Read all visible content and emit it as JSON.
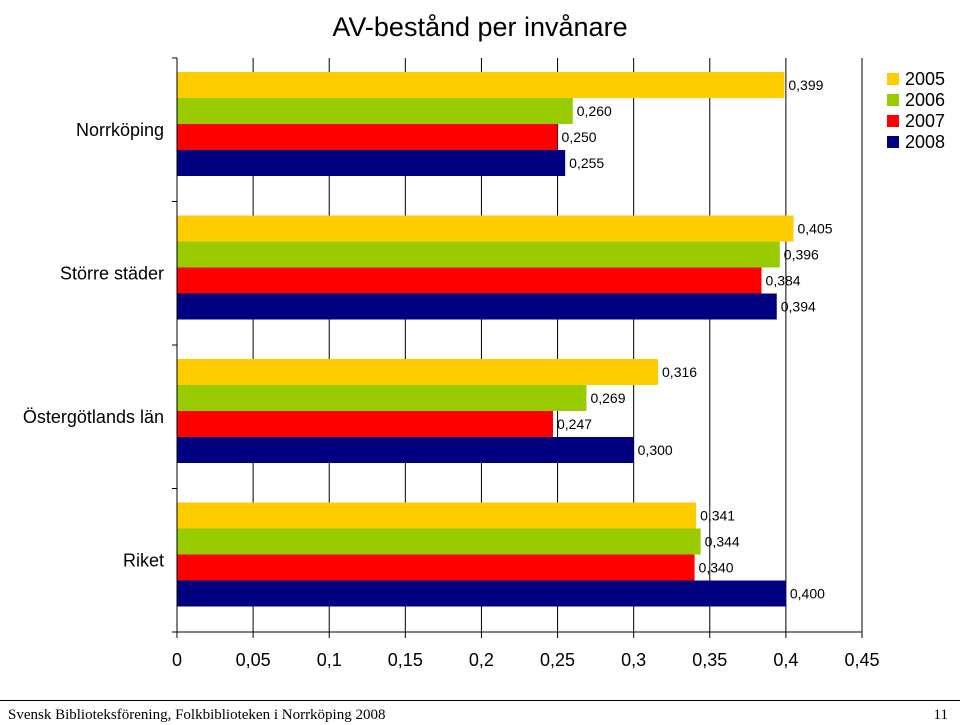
{
  "chart_data": {
    "type": "bar",
    "orientation": "horizontal",
    "title": "AV-bestånd per invånare",
    "categories": [
      "Norrköping",
      "Större städer",
      "Östergötlands län",
      "Riket"
    ],
    "series": [
      {
        "name": "2005",
        "color": "#ffcc00",
        "values": [
          0.399,
          0.405,
          0.316,
          0.341
        ],
        "labels": [
          "0,399",
          "0,405",
          "0,316",
          "0,341"
        ]
      },
      {
        "name": "2006",
        "color": "#99cc00",
        "values": [
          0.26,
          0.396,
          0.269,
          0.344
        ],
        "labels": [
          "0,260",
          "0,396",
          "0,269",
          "0,344"
        ]
      },
      {
        "name": "2007",
        "color": "#ff0000",
        "values": [
          0.25,
          0.384,
          0.247,
          0.34
        ],
        "labels": [
          "0,250",
          "0,384",
          "0,247",
          "0,340"
        ]
      },
      {
        "name": "2008",
        "color": "#000080",
        "values": [
          0.255,
          0.394,
          0.3,
          0.4
        ],
        "labels": [
          "0,255",
          "0,394",
          "0,300",
          "0,400"
        ]
      }
    ],
    "xlim": [
      0,
      0.45
    ],
    "x_ticks": [
      0,
      0.05,
      0.1,
      0.15,
      0.2,
      0.25,
      0.3,
      0.35,
      0.4,
      0.45
    ],
    "x_tick_labels": [
      "0",
      "0,05",
      "0,1",
      "0,15",
      "0,2",
      "0,25",
      "0,3",
      "0,35",
      "0,4",
      "0,45"
    ],
    "grid": "vertical",
    "legend_position": "top-right",
    "plot_background": "#ffffff",
    "bar_border": "#000000"
  },
  "footer": {
    "left": "Svensk Biblioteksförening, Folkbiblioteken i Norrköping 2008",
    "right": "11"
  }
}
